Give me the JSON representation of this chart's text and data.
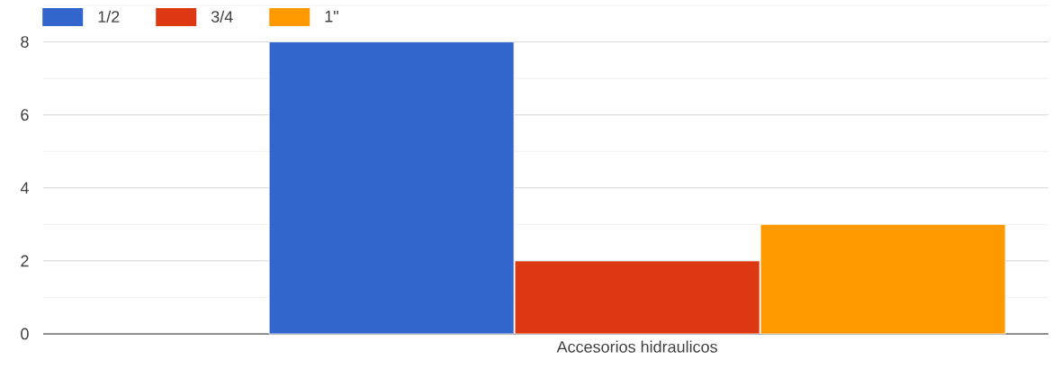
{
  "chart_data": {
    "type": "bar",
    "categories": [
      "Accesorios hidraulicos"
    ],
    "series": [
      {
        "name": "1/2",
        "color": "#3366cc",
        "values": [
          8
        ]
      },
      {
        "name": "3/4",
        "color": "#dc3912",
        "values": [
          2
        ]
      },
      {
        "name": "1\"",
        "color": "#ff9900",
        "values": [
          3
        ]
      }
    ],
    "ylim": [
      0,
      9
    ],
    "yticks": [
      0,
      2,
      4,
      6,
      8
    ],
    "grid": "y",
    "legend": "top left"
  }
}
